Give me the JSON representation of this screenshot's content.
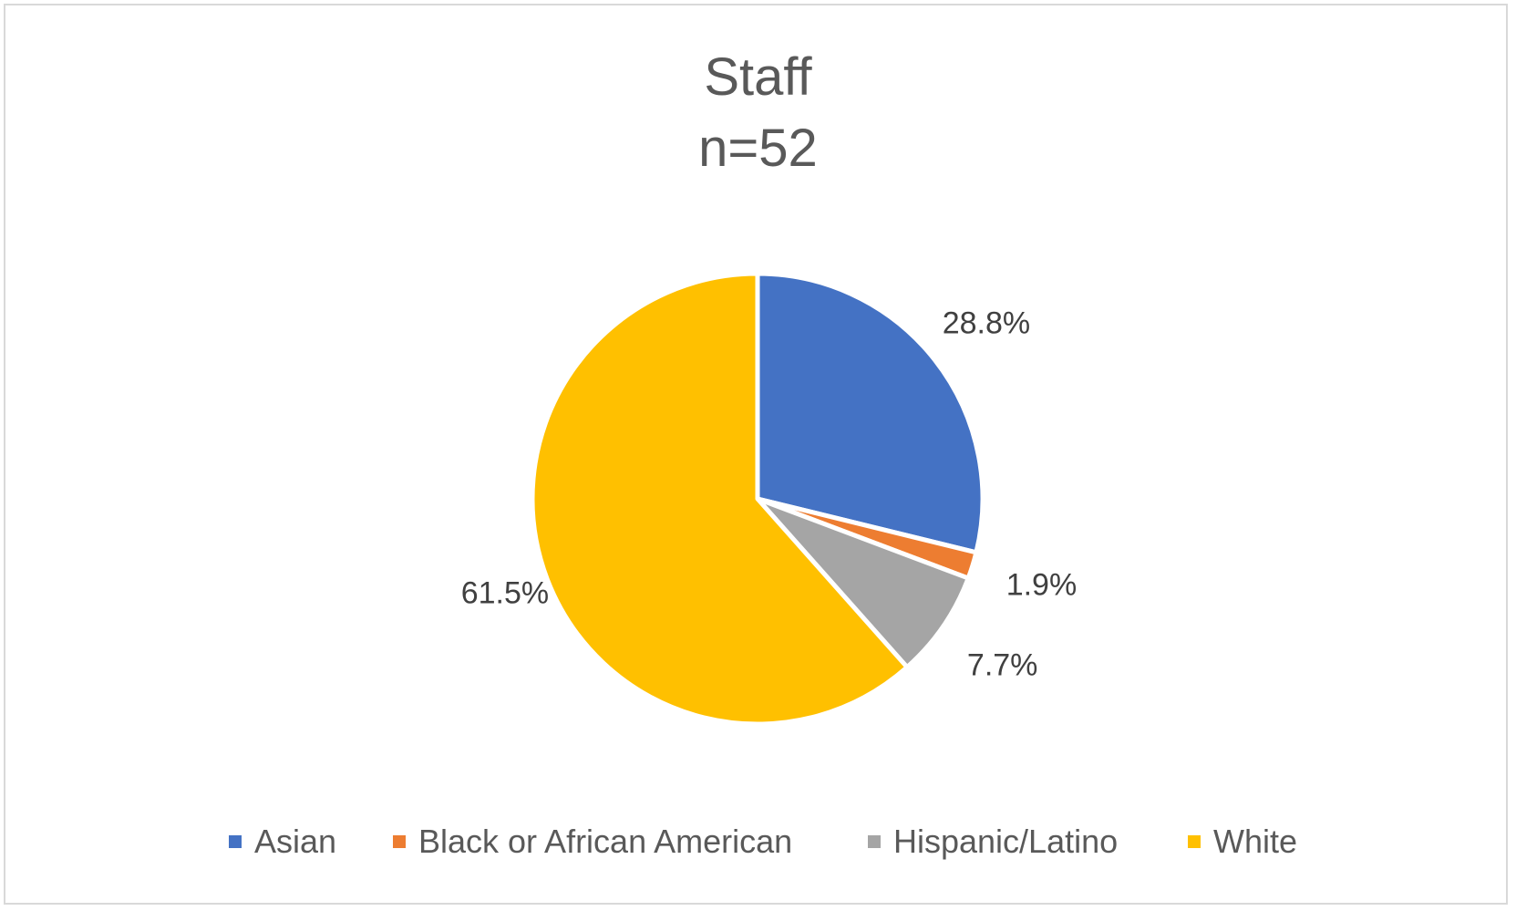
{
  "chart_data": {
    "type": "pie",
    "title": "Staff",
    "subtitle": "n=52",
    "categories": [
      "Asian",
      "Black or African American",
      "Hispanic/Latino",
      "White"
    ],
    "values": [
      28.8,
      1.9,
      7.7,
      61.5
    ],
    "value_labels": [
      "28.8%",
      "1.9%",
      "7.7%",
      "61.5%"
    ],
    "colors": [
      "#4472C4",
      "#ED7D31",
      "#A5A5A5",
      "#FFC000"
    ],
    "legend_position": "bottom"
  },
  "legend": {
    "items": [
      {
        "label": "Asian",
        "color": "#4472C4"
      },
      {
        "label": "Black or African American",
        "color": "#ED7D31"
      },
      {
        "label": "Hispanic/Latino",
        "color": "#A5A5A5"
      },
      {
        "label": "White",
        "color": "#FFC000"
      }
    ]
  }
}
